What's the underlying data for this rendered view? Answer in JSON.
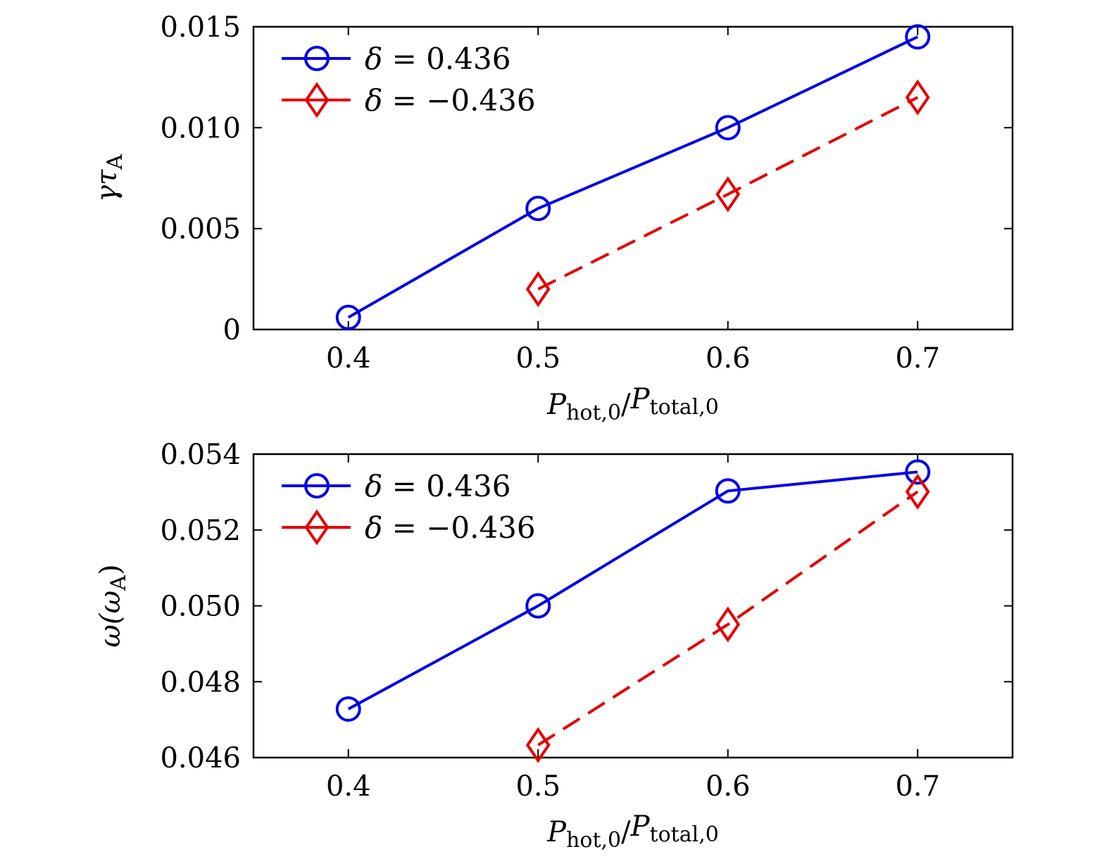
{
  "chart_data": [
    {
      "type": "line",
      "xlabel": {
        "p1": "P",
        "s1": "hot,0",
        "slash": "/",
        "p2": "P",
        "s2": "total,0"
      },
      "ylabel": {
        "main": "γτ",
        "sub": "A"
      },
      "xlim": [
        0.35,
        0.75
      ],
      "ylim": [
        0,
        0.015
      ],
      "xticks": [
        0.4,
        0.5,
        0.6,
        0.7
      ],
      "xtick_labels": [
        "0.4",
        "0.5",
        "0.6",
        "0.7"
      ],
      "yticks": [
        0,
        0.005,
        0.01,
        0.015
      ],
      "ytick_labels": [
        "0",
        "0.005",
        "0.010",
        "0.015"
      ],
      "grid": false,
      "legend_position": "top-left",
      "series": [
        {
          "name": "δ = 0.436",
          "sym": "δ",
          "rest": " = 0.436",
          "color": "#0000e6",
          "marker": "circle",
          "dash": false,
          "x": [
            0.4,
            0.5,
            0.6,
            0.7
          ],
          "y": [
            0.0006,
            0.006,
            0.01,
            0.0145
          ]
        },
        {
          "name": "δ = −0.436",
          "sym": "δ",
          "rest": " = −0.436",
          "color": "#e60000",
          "marker": "diamond",
          "dash": true,
          "x": [
            0.5,
            0.6,
            0.7
          ],
          "y": [
            0.002,
            0.0067,
            0.0115
          ]
        }
      ]
    },
    {
      "type": "line",
      "xlabel": {
        "p1": "P",
        "s1": "hot,0",
        "slash": "/",
        "p2": "P",
        "s2": "total,0"
      },
      "ylabel": {
        "main": "ω(ω",
        "sub": "A",
        "end": ")"
      },
      "xlim": [
        0.35,
        0.75
      ],
      "ylim": [
        0.046,
        0.054
      ],
      "xticks": [
        0.4,
        0.5,
        0.6,
        0.7
      ],
      "xtick_labels": [
        "0.4",
        "0.5",
        "0.6",
        "0.7"
      ],
      "yticks": [
        0.046,
        0.048,
        0.05,
        0.052,
        0.054
      ],
      "ytick_labels": [
        "0.046",
        "0.048",
        "0.050",
        "0.052",
        "0.054"
      ],
      "grid": false,
      "legend_position": "top-left",
      "series": [
        {
          "name": "δ = 0.436",
          "sym": "δ",
          "rest": " = 0.436",
          "color": "#0000e6",
          "marker": "circle",
          "dash": false,
          "x": [
            0.4,
            0.5,
            0.6,
            0.7
          ],
          "y": [
            0.04728,
            0.05,
            0.05303,
            0.05353
          ]
        },
        {
          "name": "δ = −0.436",
          "sym": "δ",
          "rest": " = −0.436",
          "color": "#e60000",
          "marker": "diamond",
          "dash": true,
          "x": [
            0.5,
            0.6,
            0.7
          ],
          "y": [
            0.04633,
            0.04951,
            0.05301
          ]
        }
      ]
    }
  ]
}
